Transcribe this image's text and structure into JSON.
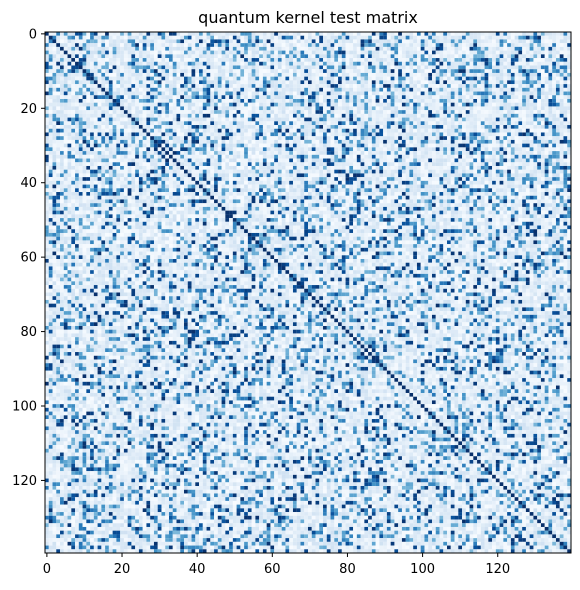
{
  "chart_data": {
    "type": "heatmap",
    "title": "quantum kernel test matrix",
    "xlabel": "",
    "ylabel": "",
    "rows": 140,
    "cols": 140,
    "x_ticks": [
      0,
      20,
      40,
      60,
      80,
      100,
      120
    ],
    "y_ticks": [
      0,
      20,
      40,
      60,
      80,
      100,
      120
    ],
    "colormap": "Blues",
    "value_range": [
      0,
      1
    ],
    "grid": false,
    "colors": {
      "low": "#f7fbff",
      "mid": "#6baed6",
      "high": "#08306b"
    },
    "diagonal_value": 1.0
  }
}
